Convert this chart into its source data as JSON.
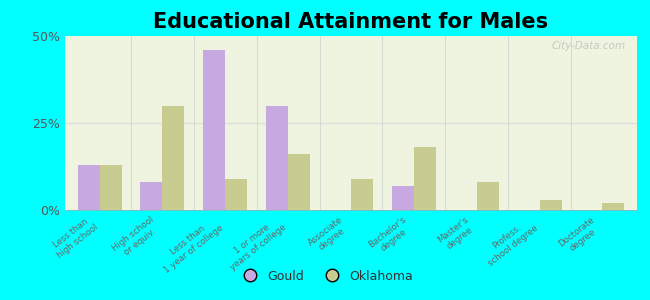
{
  "title": "Educational Attainment for Males",
  "categories": [
    "Less than\nhigh school",
    "High school\nor equiv.",
    "Less than\n1 year of college",
    "1 or more\nyears of college",
    "Associate\ndegree",
    "Bachelor's\ndegree",
    "Master's\ndegree",
    "Profess.\nschool degree",
    "Doctorate\ndegree"
  ],
  "gould_values": [
    13,
    8,
    46,
    30,
    0,
    7,
    0,
    0,
    0
  ],
  "oklahoma_values": [
    13,
    30,
    9,
    16,
    9,
    18,
    8,
    3,
    2
  ],
  "gould_color": "#c8a8e0",
  "oklahoma_color": "#c8cc90",
  "background_color": "#00ffff",
  "ylim": [
    0,
    50
  ],
  "yticks": [
    0,
    25,
    50
  ],
  "ytick_labels": [
    "0%",
    "25%",
    "50%"
  ],
  "bar_width": 0.35,
  "title_fontsize": 15,
  "legend_labels": [
    "Gould",
    "Oklahoma"
  ],
  "watermark": "City-Data.com"
}
